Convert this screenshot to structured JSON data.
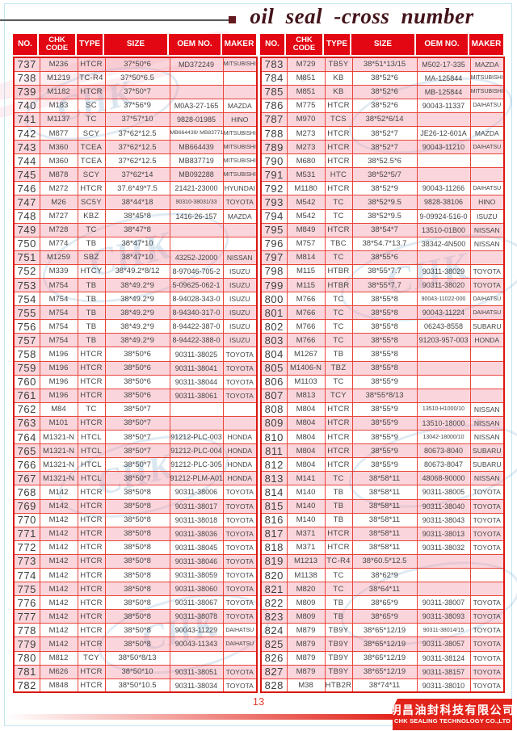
{
  "page": {
    "title": "oil seal -cross number",
    "page_number": "13"
  },
  "company": {
    "name_cn": "明昌油封科技有限公司",
    "name_en": "CHK SEALING TECHNOLOGY CO.,LTD"
  },
  "watermark": {
    "logo_text": "CHK",
    "registered_mark": "®"
  },
  "colors": {
    "header_red": "#e30613",
    "grid_red": "#e9443a",
    "row_pink": "#fad9de",
    "title_maroon": "#43141a",
    "accent_red": "#e2231a"
  },
  "columns": [
    "NO.",
    "CHK CODE",
    "TYPE",
    "SIZE",
    "OEM NO.",
    "MAKER"
  ],
  "tables": [
    {
      "rows": [
        [
          "737",
          "M236",
          "HTCR",
          "37*50*6",
          "MD372249",
          "MITSUBISHI"
        ],
        [
          "738",
          "M1219",
          "TC-R4",
          "37*50*6.5",
          "",
          ""
        ],
        [
          "739",
          "M1182",
          "HTCR",
          "37*50*7",
          "",
          ""
        ],
        [
          "740",
          "M183",
          "SC",
          "37*56*9",
          "M0A3-27-165",
          "MAZDA"
        ],
        [
          "741",
          "M1137",
          "TC",
          "37*57*10",
          "9828-01985",
          "HINO"
        ],
        [
          "742",
          "M877",
          "SCY",
          "37*62*12.5",
          "MB664439/\nMB837719",
          "MITSUBISHI"
        ],
        [
          "743",
          "M360",
          "TCEA",
          "37*62*12.5",
          "MB664439",
          "MITSUBISHI"
        ],
        [
          "744",
          "M360",
          "TCEA",
          "37*62*12.5",
          "MB837719",
          "MITSUBISHI"
        ],
        [
          "745",
          "M878",
          "SCY",
          "37*62*14",
          "MB092288",
          "MITSUBISHI"
        ],
        [
          "746",
          "M272",
          "HTCR",
          "37.6*49*7.5",
          "21421-23000",
          "HYUNDAI"
        ],
        [
          "747",
          "M26",
          "SC5Y",
          "38*44*18",
          "90310-38031/33",
          "TOYOTA"
        ],
        [
          "748",
          "M727",
          "KBZ",
          "38*45*8",
          "1416-26-157",
          "MAZDA"
        ],
        [
          "749",
          "M728",
          "TC",
          "38*47*8",
          "",
          ""
        ],
        [
          "750",
          "M774",
          "TB",
          "38*47*10",
          "",
          ""
        ],
        [
          "751",
          "M1259",
          "SBZ",
          "38*47*10",
          "43252-J2000",
          "NISSAN"
        ],
        [
          "752",
          "M339",
          "HTCY",
          "38*49.2*8/12",
          "8-97046-705-2",
          "ISUZU"
        ],
        [
          "753",
          "M754",
          "TB",
          "38*49.2*9",
          "5-09625-062-1",
          "ISUZU"
        ],
        [
          "754",
          "M754",
          "TB",
          "38*49.2*9",
          "8-94028-343-0",
          "ISUZU"
        ],
        [
          "755",
          "M754",
          "TB",
          "38*49.2*9",
          "8-94340-317-0",
          "ISUZU"
        ],
        [
          "756",
          "M754",
          "TB",
          "38*49.2*9",
          "8-94422-387-0",
          "ISUZU"
        ],
        [
          "757",
          "M754",
          "TB",
          "38*49.2*9",
          "8-94422-388-0",
          "ISUZU"
        ],
        [
          "758",
          "M196",
          "HTCR",
          "38*50*6",
          "90311-38025",
          "TOYOTA"
        ],
        [
          "759",
          "M196",
          "HTCR",
          "38*50*6",
          "90311-38041",
          "TOYOTA"
        ],
        [
          "760",
          "M196",
          "HTCR",
          "38*50*6",
          "90311-38044",
          "TOYOTA"
        ],
        [
          "761",
          "M196",
          "HTCR",
          "38*50*6",
          "90311-38061",
          "TOYOTA"
        ],
        [
          "762",
          "M84",
          "TC",
          "38*50*7",
          "",
          ""
        ],
        [
          "763",
          "M101",
          "HTCR",
          "38*50*7",
          "",
          ""
        ],
        [
          "764",
          "M1321-N",
          "HTCL",
          "38*50*7",
          "91212-PLC-003",
          "HONDA"
        ],
        [
          "765",
          "M1321-N",
          "HTCL",
          "38*50*7",
          "91212-PLC-004",
          "HONDA"
        ],
        [
          "766",
          "M1321-N",
          "HTCL",
          "38*50*7",
          "91212-PLC-305",
          "HONDA"
        ],
        [
          "767",
          "M1321-N",
          "HTCL",
          "38*50*7",
          "91212-PLM-A01",
          "HONDA"
        ],
        [
          "768",
          "M142",
          "HTCR",
          "38*50*8",
          "90311-38006",
          "TOYOTA"
        ],
        [
          "769",
          "M142",
          "HTCR",
          "38*50*8",
          "90311-38017",
          "TOYOTA"
        ],
        [
          "770",
          "M142",
          "HTCR",
          "38*50*8",
          "90311-38018",
          "TOYOTA"
        ],
        [
          "771",
          "M142",
          "HTCR",
          "38*50*8",
          "90311-38036",
          "TOYOTA"
        ],
        [
          "772",
          "M142",
          "HTCR",
          "38*50*8",
          "90311-38045",
          "TOYOTA"
        ],
        [
          "773",
          "M142",
          "HTCR",
          "38*50*8",
          "90311-38046",
          "TOYOTA"
        ],
        [
          "774",
          "M142",
          "HTCR",
          "38*50*8",
          "90311-38059",
          "TOYOTA"
        ],
        [
          "775",
          "M142",
          "HTCR",
          "38*50*8",
          "90311-38060",
          "TOYOTA"
        ],
        [
          "776",
          "M142",
          "HTCR",
          "38*50*8",
          "90311-38067",
          "TOYOTA"
        ],
        [
          "777",
          "M142",
          "HTCR",
          "38*50*8",
          "90311-38078",
          "TOYOTA"
        ],
        [
          "778",
          "M142",
          "HTCR",
          "38*50*8",
          "90043-11229",
          "DAIHATSU"
        ],
        [
          "779",
          "M142",
          "HTCR",
          "38*50*8",
          "90043-11343",
          "DAIHATSU"
        ],
        [
          "780",
          "M812",
          "TCY",
          "38*50*8/13",
          "",
          ""
        ],
        [
          "781",
          "M626",
          "HTCR",
          "38*50*10",
          "90311-38051",
          "TOYOTA"
        ],
        [
          "782",
          "M848",
          "HTCR",
          "38*50*10.5",
          "90311-38034",
          "TOYOTA"
        ]
      ]
    },
    {
      "rows": [
        [
          "783",
          "M729",
          "TB5Y",
          "38*51*13/15",
          "M502-17-335",
          "MAZDA"
        ],
        [
          "784",
          "M851",
          "KB",
          "38*52*6",
          "MA-125844",
          "MITSUBISHI"
        ],
        [
          "785",
          "M851",
          "KB",
          "38*52*6",
          "MB-125844",
          "MITSUBISHI"
        ],
        [
          "786",
          "M775",
          "HTCR",
          "38*52*6",
          "90043-11337",
          "DAIHATSU"
        ],
        [
          "787",
          "M970",
          "TCS",
          "38*52*6/14",
          "",
          ""
        ],
        [
          "788",
          "M273",
          "HTCR",
          "38*52*7",
          "JE26-12-601A",
          "MAZDA"
        ],
        [
          "789",
          "M273",
          "HTCR",
          "38*52*7",
          "90043-11210",
          "DAIHATSU"
        ],
        [
          "790",
          "M680",
          "HTCR",
          "38*52.5*6",
          "",
          ""
        ],
        [
          "791",
          "M531",
          "HTC",
          "38*52*5/7",
          "",
          ""
        ],
        [
          "792",
          "M1180",
          "HTCR",
          "38*52*9",
          "90043-11266",
          "DAIHATSU"
        ],
        [
          "793",
          "M542",
          "TC",
          "38*52*9.5",
          "9828-38106",
          "HINO"
        ],
        [
          "794",
          "M542",
          "TC",
          "38*52*9.5",
          "9-09924-516-0",
          "ISUZU"
        ],
        [
          "795",
          "M849",
          "HTCR",
          "38*54*7",
          "13510-01B00",
          "NISSAN"
        ],
        [
          "796",
          "M757",
          "TBC",
          "38*54.7*13.7",
          "38342-4N500",
          "NISSAN"
        ],
        [
          "797",
          "M814",
          "TC",
          "38*55*6",
          "",
          ""
        ],
        [
          "798",
          "M115",
          "HTBR",
          "38*55*7.7",
          "90311-38029",
          "TOYOTA"
        ],
        [
          "799",
          "M115",
          "HTBR",
          "38*55*7.7",
          "90311-38020",
          "TOYOTA"
        ],
        [
          "800",
          "M766",
          "TC",
          "38*55*8",
          "90043-11022-000",
          "DAIHATSU"
        ],
        [
          "801",
          "M766",
          "TC",
          "38*55*8",
          "90043-11224",
          "DAIHATSU"
        ],
        [
          "802",
          "M766",
          "TC",
          "38*55*8",
          "06243-8558",
          "SUBARU"
        ],
        [
          "803",
          "M766",
          "TC",
          "38*55*8",
          "91203-957-003",
          "HONDA"
        ],
        [
          "804",
          "M1267",
          "TB",
          "38*55*8",
          "",
          ""
        ],
        [
          "805",
          "M1406-N",
          "TBZ",
          "38*55*8",
          "",
          ""
        ],
        [
          "806",
          "M1103",
          "TC",
          "38*55*9",
          "",
          ""
        ],
        [
          "807",
          "M813",
          "TCY",
          "38*55*8/13",
          "",
          ""
        ],
        [
          "808",
          "M804",
          "HTCR",
          "38*55*9",
          "13510-H1000/10",
          "NISSAN"
        ],
        [
          "809",
          "M804",
          "HTCR",
          "38*55*9",
          "13510-18000",
          "NISSAN"
        ],
        [
          "810",
          "M804",
          "HTCR",
          "38*55*9",
          "13042-18000/10",
          "NISSAN"
        ],
        [
          "811",
          "M804",
          "HTCR",
          "38*55*9",
          "80673-8040",
          "SUBARU"
        ],
        [
          "812",
          "M804",
          "HTCR",
          "38*55*9",
          "80673-8047",
          "SUBARU"
        ],
        [
          "813",
          "M141",
          "TC",
          "38*58*11",
          "48068-90000",
          "NISSAN"
        ],
        [
          "814",
          "M140",
          "TB",
          "38*58*11",
          "90311-38005",
          "TOYOTA"
        ],
        [
          "815",
          "M140",
          "TB",
          "38*58*11",
          "90311-38040",
          "TOYOTA"
        ],
        [
          "816",
          "M140",
          "TB",
          "38*58*11",
          "90311-38043",
          "TOYOTA"
        ],
        [
          "817",
          "M371",
          "HTCR",
          "38*58*11",
          "90311-38013",
          "TOYOTA"
        ],
        [
          "818",
          "M371",
          "HTCR",
          "38*58*11",
          "90311-38032",
          "TOYOTA"
        ],
        [
          "819",
          "M1213",
          "TC-R4",
          "38*60.5*12.5",
          "",
          ""
        ],
        [
          "820",
          "M1138",
          "TC",
          "38*62*9",
          "",
          ""
        ],
        [
          "821",
          "M820",
          "TC",
          "38*64*11",
          "",
          ""
        ],
        [
          "822",
          "M809",
          "TB",
          "38*65*9",
          "90311-38007",
          "TOYOTA"
        ],
        [
          "823",
          "M809",
          "TB",
          "38*65*9",
          "90311-38093",
          "TOYOTA"
        ],
        [
          "824",
          "M879",
          "TB9Y",
          "38*65*12/19",
          "90311-38014/15",
          "TOYOTA"
        ],
        [
          "825",
          "M879",
          "TB9Y",
          "38*65*12/19",
          "90311-38057",
          "TOYOTA"
        ],
        [
          "826",
          "M879",
          "TB9Y",
          "38*65*12/19",
          "90311-38124",
          "TOYOTA"
        ],
        [
          "827",
          "M879",
          "TB9Y",
          "38*65*12/19",
          "90311-38157",
          "TOYOTA"
        ],
        [
          "828",
          "M38",
          "HTB2R",
          "38*74*11",
          "90311-38010",
          "TOYOTA"
        ]
      ]
    }
  ]
}
